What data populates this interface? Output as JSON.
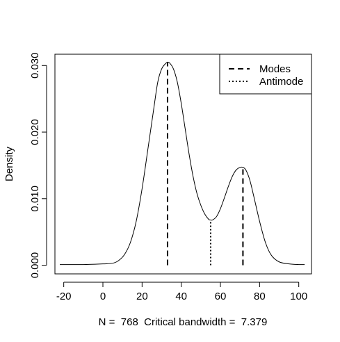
{
  "chart_data": {
    "type": "line",
    "ylabel": "Density",
    "xlabel": "N =  768  Critical bandwidth =  7.379",
    "xlim": [
      -24.5,
      106.5
    ],
    "ylim": [
      -0.0013,
      0.0317
    ],
    "x_ticks": [
      -20,
      0,
      20,
      40,
      60,
      80,
      100
    ],
    "x_tick_labels": [
      "-20",
      "0",
      "20",
      "40",
      "60",
      "80",
      "100"
    ],
    "y_ticks": [
      0.0,
      0.01,
      0.02,
      0.03
    ],
    "y_tick_labels": [
      "0.000",
      "0.010",
      "0.020",
      "0.030"
    ],
    "grid": false,
    "legend": {
      "position": "top-right",
      "entries": [
        {
          "label": "Modes",
          "style": "dashed"
        },
        {
          "label": "Antimode",
          "style": "dotted"
        }
      ]
    },
    "series": [
      {
        "style": "solid",
        "x": [
          -22,
          -10,
          0,
          5,
          8,
          11,
          14,
          17,
          20,
          23,
          26,
          28,
          30,
          32,
          33,
          34,
          36,
          38,
          40,
          42,
          44,
          46,
          48,
          50,
          52,
          54,
          55,
          56,
          58,
          60,
          62,
          64,
          66,
          68,
          70,
          71.5,
          73,
          75,
          77,
          80,
          83,
          86,
          90,
          95,
          100,
          103
        ],
        "y": [
          0.0001,
          0.0001,
          0.0002,
          0.0003,
          0.0007,
          0.0016,
          0.0034,
          0.0066,
          0.0115,
          0.0175,
          0.0236,
          0.0275,
          0.0295,
          0.0303,
          0.0305,
          0.0304,
          0.0295,
          0.0275,
          0.0243,
          0.0205,
          0.0167,
          0.0134,
          0.0108,
          0.009,
          0.0077,
          0.0069,
          0.0068,
          0.0068,
          0.0073,
          0.0085,
          0.0101,
          0.0118,
          0.0133,
          0.0143,
          0.0147,
          0.0147,
          0.0143,
          0.0128,
          0.0104,
          0.0066,
          0.0034,
          0.0015,
          0.0005,
          0.0002,
          0.0001,
          0.0001
        ]
      }
    ],
    "modes": [
      {
        "x": 33,
        "y": 0.0305
      },
      {
        "x": 71.5,
        "y": 0.0147
      }
    ],
    "antimode": {
      "x": 55,
      "y": 0.0068
    }
  }
}
